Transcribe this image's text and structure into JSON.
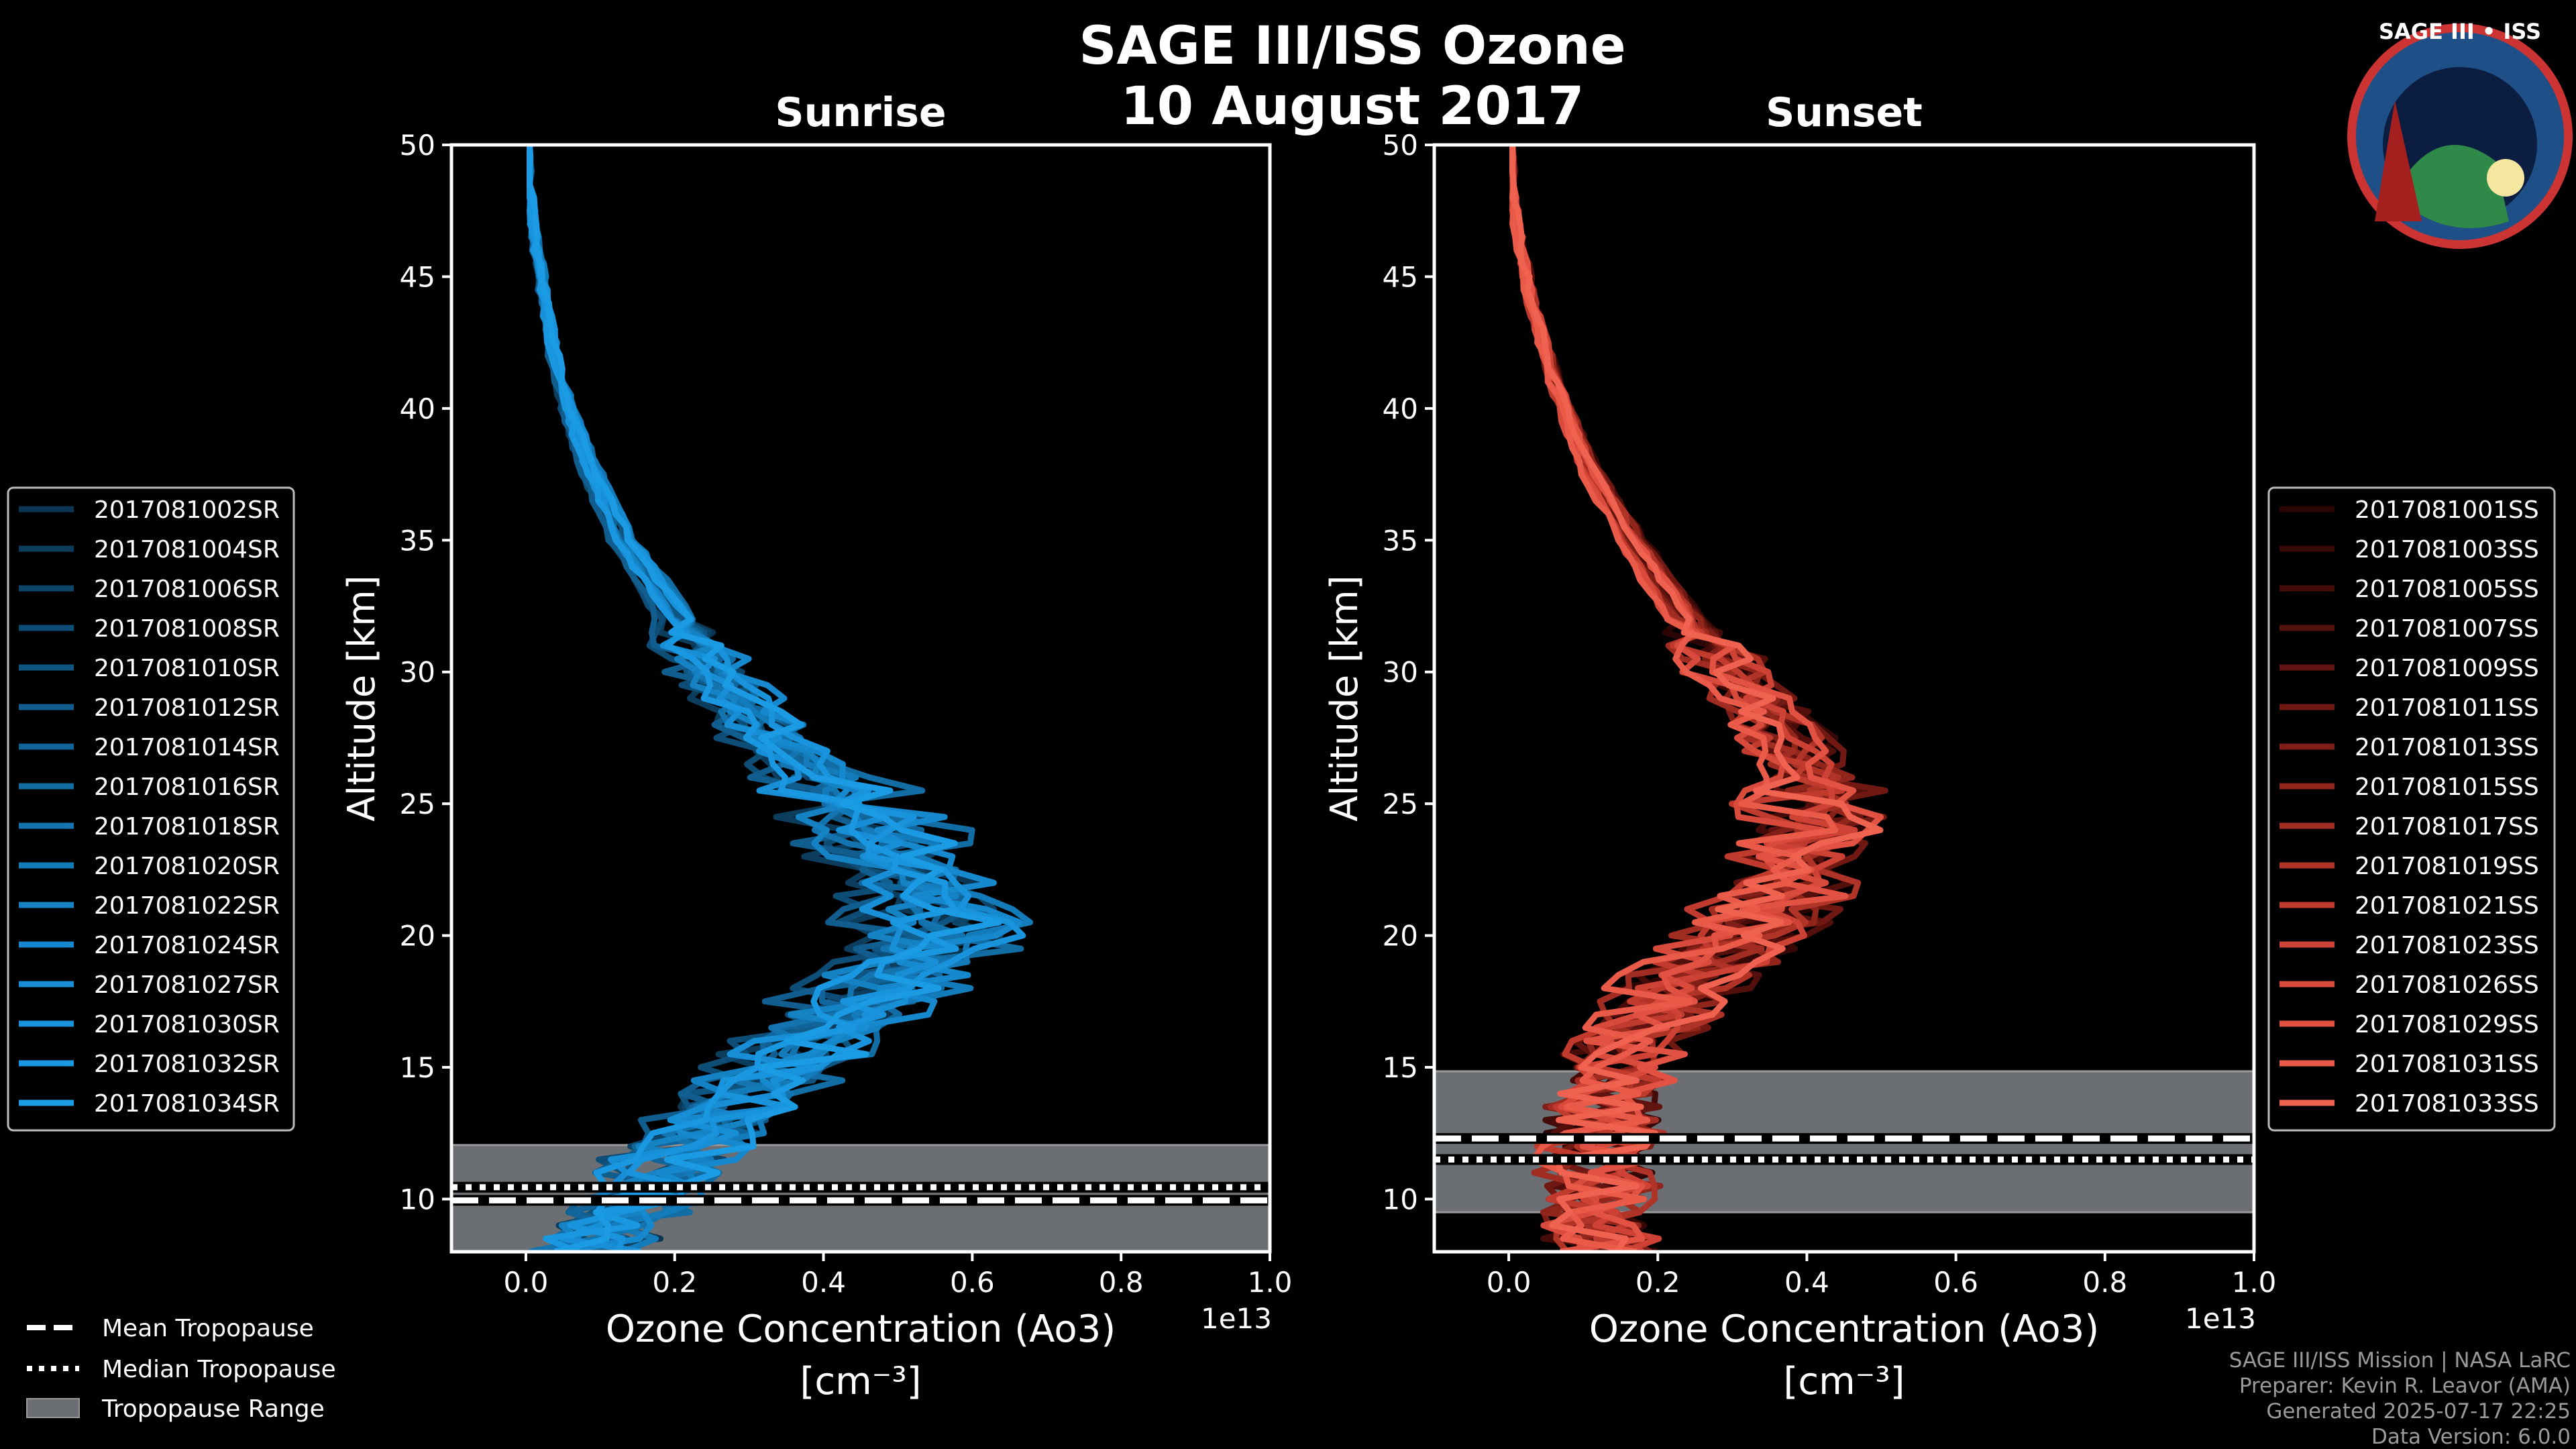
{
  "header": {
    "title": "SAGE III/ISS Ozone",
    "date": "10 August 2017",
    "logo_text": "SAGE III • ISS"
  },
  "footer": {
    "line1": "SAGE III/ISS Mission | NASA LaRC",
    "line2": "Preparer: Kevin R. Leavor (AMA)",
    "line3": "Generated 2025-07-17 22:25",
    "line4": "Data Version: 6.0.0"
  },
  "trop_legend": {
    "mean": "Mean Tropopause",
    "median": "Median Tropopause",
    "range": "Tropopause Range"
  },
  "chart_data": [
    {
      "type": "line",
      "title": "Sunrise",
      "xlabel": "Ozone Concentration (Ao3)",
      "xunit": "[cm⁻³]",
      "ylabel": "Altitude [km]",
      "x_scale_label": "1e13",
      "xlim": [
        -0.1,
        1.0
      ],
      "ylim": [
        8,
        50
      ],
      "xticks": [
        "0.0",
        "0.2",
        "0.4",
        "0.6",
        "0.8",
        "1.0"
      ],
      "yticks": [
        "10",
        "15",
        "20",
        "25",
        "30",
        "35",
        "40",
        "45",
        "50"
      ],
      "tropopause": {
        "mean": 9.95,
        "median": 10.45,
        "range": [
          8,
          12.05
        ]
      },
      "base_profile": {
        "alt": [
          50,
          47,
          44,
          41,
          38,
          35,
          32,
          30,
          28,
          26,
          24,
          22,
          20,
          18,
          16,
          14,
          12,
          10,
          8
        ],
        "o3": [
          0.0,
          0.01,
          0.025,
          0.045,
          0.08,
          0.13,
          0.2,
          0.25,
          0.31,
          0.38,
          0.46,
          0.52,
          0.54,
          0.47,
          0.38,
          0.28,
          0.21,
          0.15,
          0.08
        ]
      },
      "series": [
        {
          "name": "2017081002SR",
          "color": "#0b3550"
        },
        {
          "name": "2017081004SR",
          "color": "#0c3d5d"
        },
        {
          "name": "2017081006SR",
          "color": "#0d4569"
        },
        {
          "name": "2017081008SR",
          "color": "#0e4d76"
        },
        {
          "name": "2017081010SR",
          "color": "#0f5582"
        },
        {
          "name": "2017081012SR",
          "color": "#105d8e"
        },
        {
          "name": "2017081014SR",
          "color": "#11659a"
        },
        {
          "name": "2017081016SR",
          "color": "#126da5"
        },
        {
          "name": "2017081018SR",
          "color": "#1374b0"
        },
        {
          "name": "2017081020SR",
          "color": "#147bba"
        },
        {
          "name": "2017081022SR",
          "color": "#1582c4"
        },
        {
          "name": "2017081024SR",
          "color": "#1688cd"
        },
        {
          "name": "2017081027SR",
          "color": "#178ed5"
        },
        {
          "name": "2017081030SR",
          "color": "#1893dc"
        },
        {
          "name": "2017081032SR",
          "color": "#1997e0"
        },
        {
          "name": "2017081034SR",
          "color": "#1a9be3"
        }
      ]
    },
    {
      "type": "line",
      "title": "Sunset",
      "xlabel": "Ozone Concentration (Ao3)",
      "xunit": "[cm⁻³]",
      "ylabel": "Altitude [km]",
      "x_scale_label": "1e13",
      "xlim": [
        -0.1,
        1.0
      ],
      "ylim": [
        8,
        50
      ],
      "xticks": [
        "0.0",
        "0.2",
        "0.4",
        "0.6",
        "0.8",
        "1.0"
      ],
      "yticks": [
        "10",
        "15",
        "20",
        "25",
        "30",
        "35",
        "40",
        "45",
        "50"
      ],
      "tropopause": {
        "mean": 12.3,
        "median": 11.5,
        "range": [
          9.5,
          14.85
        ]
      },
      "base_profile": {
        "alt": [
          50,
          47,
          44,
          41,
          38,
          35,
          32,
          30,
          28,
          26,
          24,
          22,
          20,
          18,
          16,
          14,
          12,
          10,
          8
        ],
        "o3": [
          0.0,
          0.01,
          0.03,
          0.06,
          0.1,
          0.16,
          0.23,
          0.29,
          0.35,
          0.39,
          0.4,
          0.37,
          0.3,
          0.22,
          0.16,
          0.13,
          0.12,
          0.11,
          0.12
        ]
      },
      "series": [
        {
          "name": "2017081001SS",
          "color": "#2a0504"
        },
        {
          "name": "2017081003SS",
          "color": "#360806"
        },
        {
          "name": "2017081005SS",
          "color": "#440b08"
        },
        {
          "name": "2017081007SS",
          "color": "#520f0b"
        },
        {
          "name": "2017081009SS",
          "color": "#61140f"
        },
        {
          "name": "2017081011SS",
          "color": "#701913"
        },
        {
          "name": "2017081013SS",
          "color": "#801f17"
        },
        {
          "name": "2017081015SS",
          "color": "#90251c"
        },
        {
          "name": "2017081017SS",
          "color": "#a02c22"
        },
        {
          "name": "2017081019SS",
          "color": "#b03328"
        },
        {
          "name": "2017081021SS",
          "color": "#c03a2e"
        },
        {
          "name": "2017081023SS",
          "color": "#cd4234"
        },
        {
          "name": "2017081026SS",
          "color": "#d84a3b"
        },
        {
          "name": "2017081029SS",
          "color": "#e25242"
        },
        {
          "name": "2017081031SS",
          "color": "#ea5a49"
        },
        {
          "name": "2017081033SS",
          "color": "#f06250"
        }
      ]
    }
  ]
}
